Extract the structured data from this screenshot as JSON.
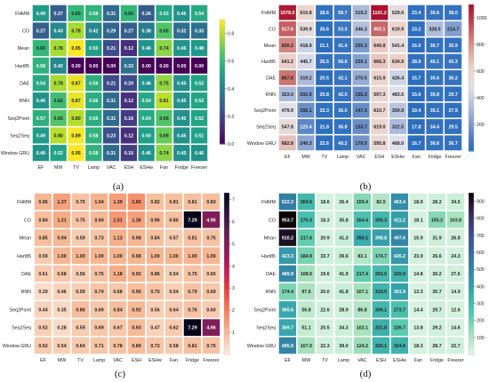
{
  "rows": [
    "FHMM",
    "CO",
    "Mean",
    "Hart85",
    "DAE",
    "RNN",
    "Seq2Point",
    "Seq2Seq",
    "Window GRU"
  ],
  "cols": [
    "EF",
    "MW",
    "TV",
    "Lamp",
    "VAC",
    "ESH",
    "ESHw",
    "Fan",
    "Fridge",
    "Freezer"
  ],
  "chart_data": [
    {
      "type": "heatmap",
      "panel_label": "(a)",
      "colormap": "viridis",
      "vmin": 0,
      "vmax": 0.9,
      "colorbar_ticks": [
        0.0,
        0.2,
        0.4,
        0.6,
        0.8
      ],
      "values": [
        [
          0.49,
          0.27,
          0.6,
          0.58,
          0.31,
          0.6,
          0.26,
          0.53,
          0.46,
          0.54
        ],
        [
          0.27,
          0.43,
          0.78,
          0.42,
          0.29,
          0.27,
          0.38,
          0.65,
          0.32,
          0.33
        ],
        [
          0.6,
          0.78,
          0.95,
          0.5,
          0.21,
          0.12,
          0.46,
          0.74,
          0.46,
          0.48
        ],
        [
          0.58,
          0.42,
          0.0,
          0.0,
          0.0,
          0.33,
          0.0,
          0.0,
          0.0,
          0.0
        ],
        [
          0.54,
          0.78,
          0.87,
          0.56,
          0.21,
          0.2,
          0.46,
          0.75,
          0.45,
          0.52
        ],
        [
          0.46,
          0.62,
          0.87,
          0.56,
          0.31,
          0.12,
          0.54,
          0.81,
          0.45,
          0.52
        ],
        [
          0.57,
          0.65,
          0.8,
          0.56,
          0.31,
          0.16,
          0.54,
          0.65,
          0.45,
          0.52
        ],
        [
          0.49,
          0.8,
          0.89,
          0.58,
          0.23,
          0.12,
          0.5,
          0.69,
          0.45,
          0.51
        ],
        [
          0.46,
          0.52,
          0.95,
          0.58,
          0.31,
          0.16,
          0.46,
          0.74,
          0.45,
          0.46
        ]
      ]
    },
    {
      "type": "heatmap",
      "panel_label": "(b)",
      "colormap": "vlag",
      "vmin": 0,
      "vmax": 1100,
      "colorbar_ticks": [
        200,
        400,
        600,
        800,
        1000
      ],
      "values": [
        [
          1078.0,
          610.8,
          28.6,
          59.7,
          319.2,
          1101.2,
          529.0,
          23.4,
          36.6,
          38.0
        ],
        [
          917.6,
          539.9,
          26.6,
          53.3,
          346.3,
          903.1,
          619.9,
          23.2,
          328.5,
          214.7
        ],
        [
          830.2,
          418.9,
          21.1,
          41.4,
          205.3,
          649.8,
          541.4,
          16.6,
          36.7,
          35.9
        ],
        [
          641.2,
          445.7,
          35.5,
          56.6,
          229.1,
          666.3,
          634.9,
          28.9,
          45.1,
          43.3
        ],
        [
          867.6,
          319.2,
          20.5,
          42.1,
          270.5,
          615.9,
          426.4,
          15.7,
          35.6,
          36.2
        ],
        [
          323.0,
          202.9,
          20.8,
          42.0,
          155.3,
          597.3,
          483.5,
          15.6,
          35.8,
          29.7
        ],
        [
          479.9,
          156.1,
          33.3,
          36.0,
          147.3,
          610.7,
          359.9,
          19.4,
          35.1,
          27.9
        ],
        [
          547.8,
          123.4,
          21.8,
          36.8,
          153.7,
          619.0,
          322.5,
          17.8,
          34.4,
          29.5
        ],
        [
          682.8,
          240.3,
          22.6,
          40.2,
          179.0,
          595.8,
          468.0,
          16.7,
          36.6,
          36.7
        ]
      ]
    },
    {
      "type": "heatmap",
      "panel_label": "(c)",
      "colormap": "rocket_r",
      "vmin": 0,
      "vmax": 7.3,
      "colorbar_ticks": [
        1,
        2,
        3,
        4,
        5,
        6,
        7
      ],
      "values": [
        [
          0.96,
          1.37,
          0.75,
          1.04,
          1.39,
          1.65,
          0.82,
          0.81,
          0.81,
          0.83
        ],
        [
          0.84,
          1.21,
          0.75,
          0.94,
          1.51,
          1.36,
          0.96,
          0.8,
          7.29,
          4.96
        ],
        [
          0.85,
          0.94,
          0.59,
          0.73,
          1.13,
          0.98,
          0.84,
          0.57,
          0.81,
          0.75
        ],
        [
          0.59,
          1.0,
          1.0,
          1.0,
          1.0,
          0.98,
          1.0,
          1.0,
          1.0,
          1.0
        ],
        [
          0.61,
          0.68,
          0.56,
          0.75,
          1.18,
          0.92,
          0.86,
          0.54,
          0.75,
          0.65
        ],
        [
          0.29,
          0.46,
          0.59,
          0.74,
          0.68,
          0.9,
          0.75,
          0.54,
          0.79,
          0.69
        ],
        [
          0.44,
          0.35,
          0.86,
          0.69,
          0.84,
          0.92,
          0.56,
          0.64,
          0.76,
          0.6
        ],
        [
          0.52,
          0.28,
          0.59,
          0.69,
          0.67,
          0.93,
          0.47,
          0.62,
          7.29,
          4.96
        ],
        [
          0.62,
          0.54,
          0.64,
          0.71,
          0.78,
          0.89,
          0.72,
          0.58,
          0.81,
          0.75
        ]
      ]
    },
    {
      "type": "heatmap",
      "panel_label": "(d)",
      "colormap": "mako_r",
      "vmin": 0,
      "vmax": 950,
      "colorbar_ticks": [
        100,
        200,
        300,
        400,
        500,
        600,
        700,
        800,
        900
      ],
      "values": [
        [
          522.3,
          304.5,
          18.6,
          26.4,
          159.4,
          82.5,
          463.4,
          18.9,
          28.2,
          34.5
        ],
        [
          953.7,
          275.3,
          18.3,
          35.8,
          264.4,
          305.3,
          411.2,
          18.1,
          155.2,
          103.8
        ],
        [
          910.2,
          217.6,
          20.9,
          41.3,
          350.1,
          398.8,
          497.6,
          15.9,
          31.9,
          26.8
        ],
        [
          423.3,
          184.9,
          33.7,
          39.6,
          83.1,
          174.7,
          426.2,
          23.9,
          26.6,
          24.3
        ],
        [
          489.9,
          108.5,
          19.6,
          41.9,
          217.4,
          293.0,
          320.9,
          14.8,
          30.2,
          27.6
        ],
        [
          174.4,
          97.6,
          20.0,
          41.8,
          107.1,
          319.5,
          391.9,
          13.3,
          30.7,
          14.9
        ],
        [
          365.6,
          56.8,
          22.6,
          28.9,
          86.8,
          306.1,
          273.7,
          14.4,
          29.7,
          12.6
        ],
        [
          369.7,
          51.1,
          20.5,
          34.3,
          102.1,
          331.8,
          226.7,
          13.8,
          29.2,
          14.6
        ],
        [
          495.9,
          107.0,
          22.3,
          39.0,
          124.2,
          320.1,
          324.6,
          18.3,
          28.7,
          22.7
        ]
      ]
    }
  ]
}
